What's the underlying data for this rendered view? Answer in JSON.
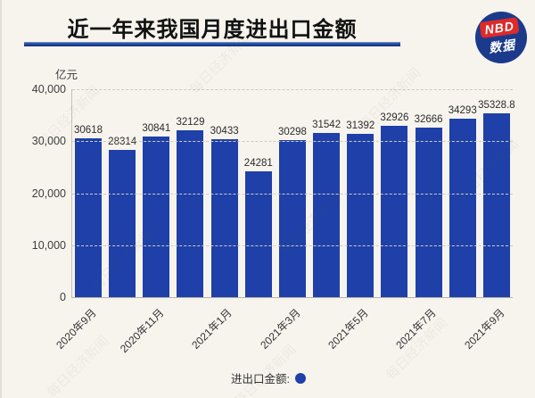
{
  "header": {
    "title": "近一年来我国月度进出口金额"
  },
  "logo": {
    "top": "NBD",
    "bottom": "数据"
  },
  "watermark": {
    "text": "每日经济新闻"
  },
  "legend": {
    "label": "进出口金额:"
  },
  "chart_data": {
    "type": "bar",
    "title": "近一年来我国月度进出口金额",
    "xlabel": "",
    "ylabel": "亿元",
    "ylim": [
      0,
      40000
    ],
    "y_ticks": [
      "40,000",
      "30,000",
      "20,000",
      "10,000",
      "0"
    ],
    "grid": "horizontal-dashed",
    "legend_label": "进出口金额:",
    "legend_position": "bottom-center",
    "bar_color": "#1e40a8",
    "x_tick_labels": [
      "2020年9月",
      "2020年11月",
      "2021年1月",
      "2021年3月",
      "2021年5月",
      "2021年7月",
      "2021年9月"
    ],
    "x_tick_every": 2,
    "bars": [
      {
        "value": 30618,
        "label": "30618"
      },
      {
        "value": 28314,
        "label": "28314"
      },
      {
        "value": 30841,
        "label": "30841"
      },
      {
        "value": 32129,
        "label": "32129"
      },
      {
        "value": 30433,
        "label": "30433"
      },
      {
        "value": 24281,
        "label": "24281"
      },
      {
        "value": 30298,
        "label": "30298"
      },
      {
        "value": 31542,
        "label": "31542"
      },
      {
        "value": 31392,
        "label": "31392"
      },
      {
        "value": 32926,
        "label": "32926"
      },
      {
        "value": 32666,
        "label": "32666"
      },
      {
        "value": 34293,
        "label": "34293"
      },
      {
        "value": 35328.8,
        "label": "35328.8"
      }
    ]
  },
  "colors": {
    "background": "#f7f4ee",
    "bar": "#1e40a8",
    "accent_navy": "#1c3a8c",
    "badge_red": "#de2a2a"
  }
}
